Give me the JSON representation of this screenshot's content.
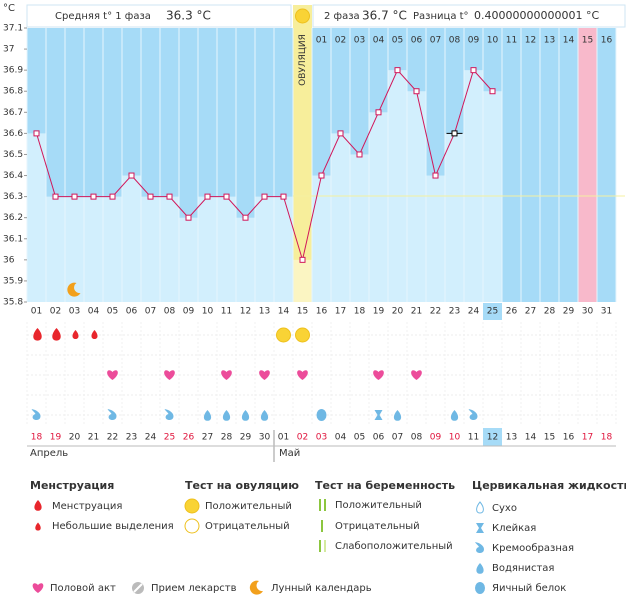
{
  "header": {
    "phase1_label": "Средняя t° 1 фаза",
    "phase1_value": "36.3 °C",
    "phase2_label": "2 фаза",
    "phase2_value": "36.7 °C",
    "diff_label": "Разница t°",
    "diff_value": "0.40000000000001 °C"
  },
  "chart_data": {
    "type": "line",
    "y_label": "°C",
    "ovulation_label": "ОВУЛЯЦИЯ",
    "categories": [
      "01",
      "02",
      "03",
      "04",
      "05",
      "06",
      "07",
      "08",
      "09",
      "10",
      "11",
      "12",
      "13",
      "14",
      "15",
      "16",
      "17",
      "18",
      "19",
      "20",
      "21",
      "22",
      "23",
      "24",
      "25",
      "26",
      "27",
      "28",
      "29",
      "30",
      "31"
    ],
    "values": [
      36.6,
      36.3,
      36.3,
      36.3,
      36.3,
      36.4,
      36.3,
      36.3,
      36.2,
      36.3,
      36.3,
      36.2,
      36.3,
      36.3,
      36.0,
      36.4,
      36.6,
      36.5,
      36.7,
      36.9,
      36.8,
      36.4,
      36.6,
      36.9,
      36.8,
      null,
      null,
      null,
      null,
      null,
      null
    ],
    "color": "#d1175a",
    "ylim": [
      35.8,
      37.1
    ],
    "yticks": [
      35.8,
      35.9,
      36,
      36.1,
      36.2,
      36.3,
      36.4,
      36.5,
      36.6,
      36.7,
      36.8,
      36.9,
      37,
      37.1
    ],
    "phase2_days": [
      "01",
      "02",
      "03",
      "04",
      "05",
      "06",
      "07",
      "08",
      "09",
      "10",
      "11",
      "12",
      "13",
      "14",
      "15",
      "16"
    ],
    "dates": [
      "18",
      "19",
      "20",
      "21",
      "22",
      "23",
      "24",
      "25",
      "26",
      "27",
      "28",
      "29",
      "30",
      "01",
      "02",
      "03",
      "04",
      "05",
      "06",
      "07",
      "08",
      "09",
      "10",
      "11",
      "12",
      "13",
      "14",
      "15",
      "16",
      "17",
      "18"
    ],
    "months": [
      "Апрель",
      "Май"
    ]
  },
  "legend": {
    "menstruation": {
      "title": "Менструация",
      "items": [
        "Менструация",
        "Небольшие выделения"
      ]
    },
    "ovulation_test": {
      "title": "Тест на овуляцию",
      "items": [
        "Положительный",
        "Отрицательный"
      ]
    },
    "pregnancy_test": {
      "title": "Тест на беременность",
      "items": [
        "Положительный",
        "Отрицательный",
        "Слабоположительный"
      ]
    },
    "cervical_fluid": {
      "title": "Цервикальная жидкость",
      "items": [
        "Сухо",
        "Клейкая",
        "Кремообразная",
        "Водянистая",
        "Яичный белок"
      ]
    },
    "other": [
      "Половой акт",
      "Прием лекарств",
      "Лунный календарь"
    ]
  }
}
